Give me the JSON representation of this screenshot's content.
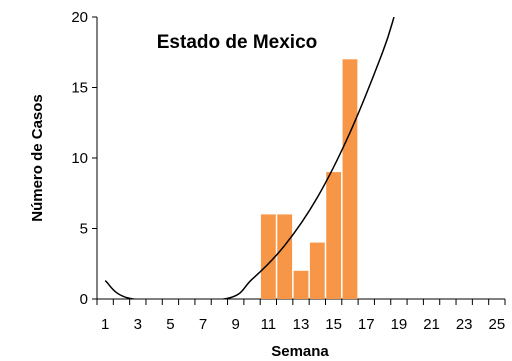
{
  "chart_data": {
    "type": "bar",
    "title": "Estado de Mexico",
    "xlabel": "Semana",
    "ylabel": "Número de Casos",
    "x": [
      1,
      2,
      3,
      4,
      5,
      6,
      7,
      8,
      9,
      10,
      11,
      12,
      13,
      14,
      15,
      16,
      17,
      18,
      19,
      20,
      21,
      22,
      23,
      24,
      25
    ],
    "x_tick_labels": [
      "1",
      "3",
      "5",
      "7",
      "9",
      "11",
      "13",
      "15",
      "17",
      "19",
      "21",
      "23",
      "25"
    ],
    "values": [
      0,
      0,
      0,
      0,
      0,
      0,
      0,
      0,
      0,
      0,
      6,
      6,
      2,
      4,
      9,
      17,
      0,
      0,
      0,
      0,
      0,
      0,
      0,
      0,
      0
    ],
    "ylim": [
      0,
      20
    ],
    "y_ticks": [
      0,
      5,
      10,
      15,
      20
    ],
    "bar_color": "#f79646",
    "trendline": {
      "type": "polynomial-2",
      "points": [
        [
          1,
          1.3
        ],
        [
          2.7,
          0
        ],
        [
          8.3,
          0
        ],
        [
          10,
          1.4
        ],
        [
          12,
          3.8
        ],
        [
          14,
          7.2
        ],
        [
          16,
          11.8
        ],
        [
          18,
          17.5
        ],
        [
          18.7,
          20
        ]
      ],
      "color": "#000000"
    },
    "grid": false,
    "legend": "none"
  }
}
